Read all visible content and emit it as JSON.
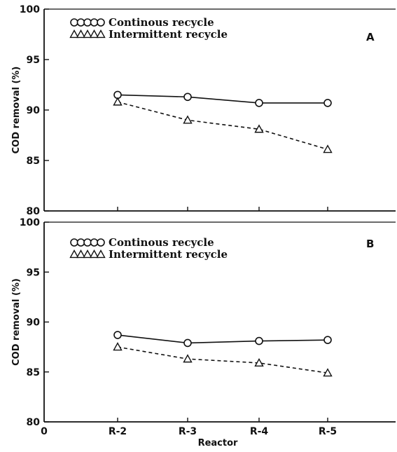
{
  "chart_data": [
    {
      "type": "line",
      "panel": "A",
      "categories": [
        "R-2",
        "R-3",
        "R-4",
        "R-5"
      ],
      "x_ticks": [
        "0",
        "R-2",
        "R-3",
        "R-4",
        "R-5"
      ],
      "series": [
        {
          "name": "Continous recycle",
          "marker": "circle",
          "line": "solid",
          "values": [
            91.5,
            91.3,
            90.7,
            90.7
          ]
        },
        {
          "name": "Intermittent recycle",
          "marker": "triangle",
          "line": "dashed",
          "values": [
            90.8,
            89.0,
            88.1,
            86.1
          ]
        }
      ],
      "ylabel": "COD removal (%)",
      "xlabel": "",
      "ylim": [
        80,
        100
      ],
      "yticks": [
        80,
        85,
        90,
        95,
        100
      ],
      "legend_placement": "top-left",
      "grid": false
    },
    {
      "type": "line",
      "panel": "B",
      "categories": [
        "R-2",
        "R-3",
        "R-4",
        "R-5"
      ],
      "x_ticks": [
        "0",
        "R-2",
        "R-3",
        "R-4",
        "R-5"
      ],
      "series": [
        {
          "name": "Continous recycle",
          "marker": "circle",
          "line": "solid",
          "values": [
            88.7,
            87.9,
            88.1,
            88.2
          ]
        },
        {
          "name": "Intermittent recycle",
          "marker": "triangle",
          "line": "dashed",
          "values": [
            87.5,
            86.3,
            85.9,
            84.9
          ]
        }
      ],
      "ylabel": "COD removal (%)",
      "xlabel": "Reactor",
      "ylim": [
        80,
        100
      ],
      "yticks": [
        80,
        85,
        90,
        95,
        100
      ],
      "legend_placement": "top-left",
      "grid": false
    }
  ]
}
